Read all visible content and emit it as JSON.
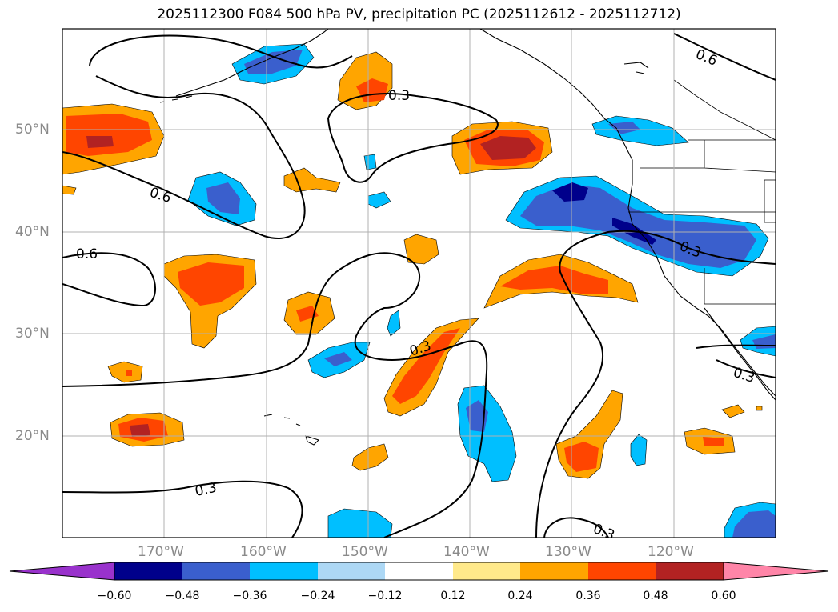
{
  "title": "2025112300 F084 500 hPa PV, precipitation PC (2025112612 - 2025112712)",
  "lat_labels": [
    "50°N",
    "40°N",
    "30°N",
    "20°N"
  ],
  "lon_labels": [
    "170°W",
    "160°W",
    "150°W",
    "140°W",
    "130°W",
    "120°W"
  ],
  "contour_labels": [
    "0.3",
    "0.6",
    "0.6",
    "0.6",
    "0.3",
    "0.3",
    "0.3",
    "0.3",
    "0.3"
  ],
  "colorbar": {
    "ticks": [
      "−0.60",
      "−0.48",
      "−0.36",
      "−0.24",
      "−0.12",
      "0.12",
      "0.24",
      "0.36",
      "0.48",
      "0.60"
    ],
    "colors": [
      "#9932cc",
      "#00008b",
      "#3a5fcd",
      "#00bfff",
      "#add8f5",
      "#ffffff",
      "#ffe98a",
      "#ffa500",
      "#ff4500",
      "#b22222",
      "#ff85a8"
    ]
  },
  "colors": {
    "neg_dark": "#00008b",
    "neg_mid": "#3a5fcd",
    "neg_light": "#00bfff",
    "pos_light": "#ffa500",
    "pos_mid": "#ff4500",
    "pos_dark": "#b22222",
    "grid": "#b0b0b0"
  }
}
